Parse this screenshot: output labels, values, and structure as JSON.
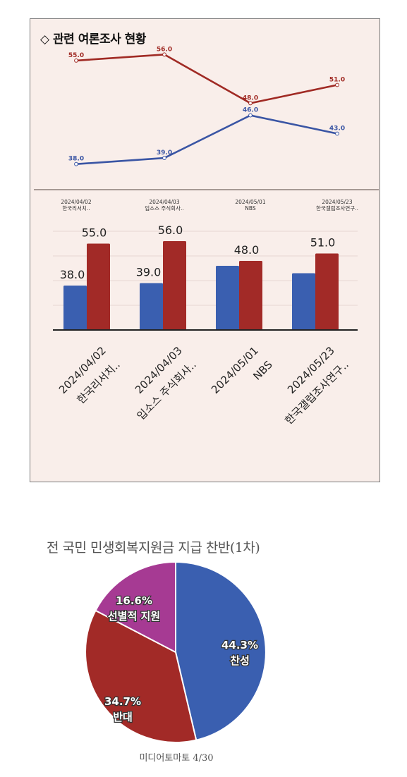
{
  "panel": {
    "title": "◇ 관련 여론조사 현황"
  },
  "chart_data": [
    {
      "type": "line",
      "categories": [
        "2024/04/02\n한국리서치..",
        "2024/04/03\n입소스 주식회사..",
        "2024/05/01\nNBS",
        "2024/05/23\n한국갤럽조사연구.."
      ],
      "category_lines": [
        [
          "2024/04/02",
          "한국리서치.."
        ],
        [
          "2024/04/03",
          "입소스 주식회사.."
        ],
        [
          "2024/05/01",
          "NBS"
        ],
        [
          "2024/05/23",
          "한국갤럽조사연구.."
        ]
      ],
      "series": [
        {
          "values": [
            38.0,
            39.0,
            46.0,
            43.0
          ],
          "color": "#3a55a4"
        },
        {
          "values": [
            55.0,
            56.0,
            48.0,
            51.0
          ],
          "color": "#a02a24"
        }
      ],
      "labels": [
        [
          "38.0",
          "39.0",
          "46.0",
          "43.0"
        ],
        [
          "55.0",
          "56.0",
          "48.0",
          "51.0"
        ]
      ],
      "ylim": [
        36,
        58
      ],
      "grid": false
    },
    {
      "type": "bar",
      "categories": [
        "2024/04/02 한국리서치..",
        "2024/04/03 입소스 주식회사..",
        "2024/05/01 NBS",
        "2024/05/23 한국갤럽조사연구.."
      ],
      "category_lines": [
        [
          "2024/04/02",
          "한국리서치.."
        ],
        [
          "2024/04/03",
          "입소스 주식회사.."
        ],
        [
          "2024/05/01",
          "NBS"
        ],
        [
          "2024/05/23",
          "한국갤럽조사연구.."
        ]
      ],
      "series": [
        {
          "values": [
            38.0,
            39.0,
            46.0,
            43.0
          ],
          "color": "#3a5fb0"
        },
        {
          "values": [
            55.0,
            56.0,
            48.0,
            51.0
          ],
          "color": "#a22a27"
        }
      ],
      "labels": [
        [
          "38.0",
          "39.0",
          "",
          ""
        ],
        [
          "55.0",
          "56.0",
          "48.0",
          "51.0"
        ]
      ],
      "ylim": [
        20,
        60
      ],
      "grid": true
    },
    {
      "type": "pie",
      "title": "전 국민 민생회복지원금 지급 찬반(1차)",
      "source": "미디어토마토 4/30",
      "slices": [
        {
          "pct": "44.3%",
          "label": "찬성",
          "value": 44.3,
          "color": "#3a5fb0"
        },
        {
          "pct": "34.7%",
          "label": "반대",
          "value": 34.7,
          "color": "#a22a27"
        },
        {
          "pct": "16.6%",
          "label": "선별적 지원",
          "value": 16.6,
          "color": "#a63a93"
        }
      ]
    }
  ]
}
